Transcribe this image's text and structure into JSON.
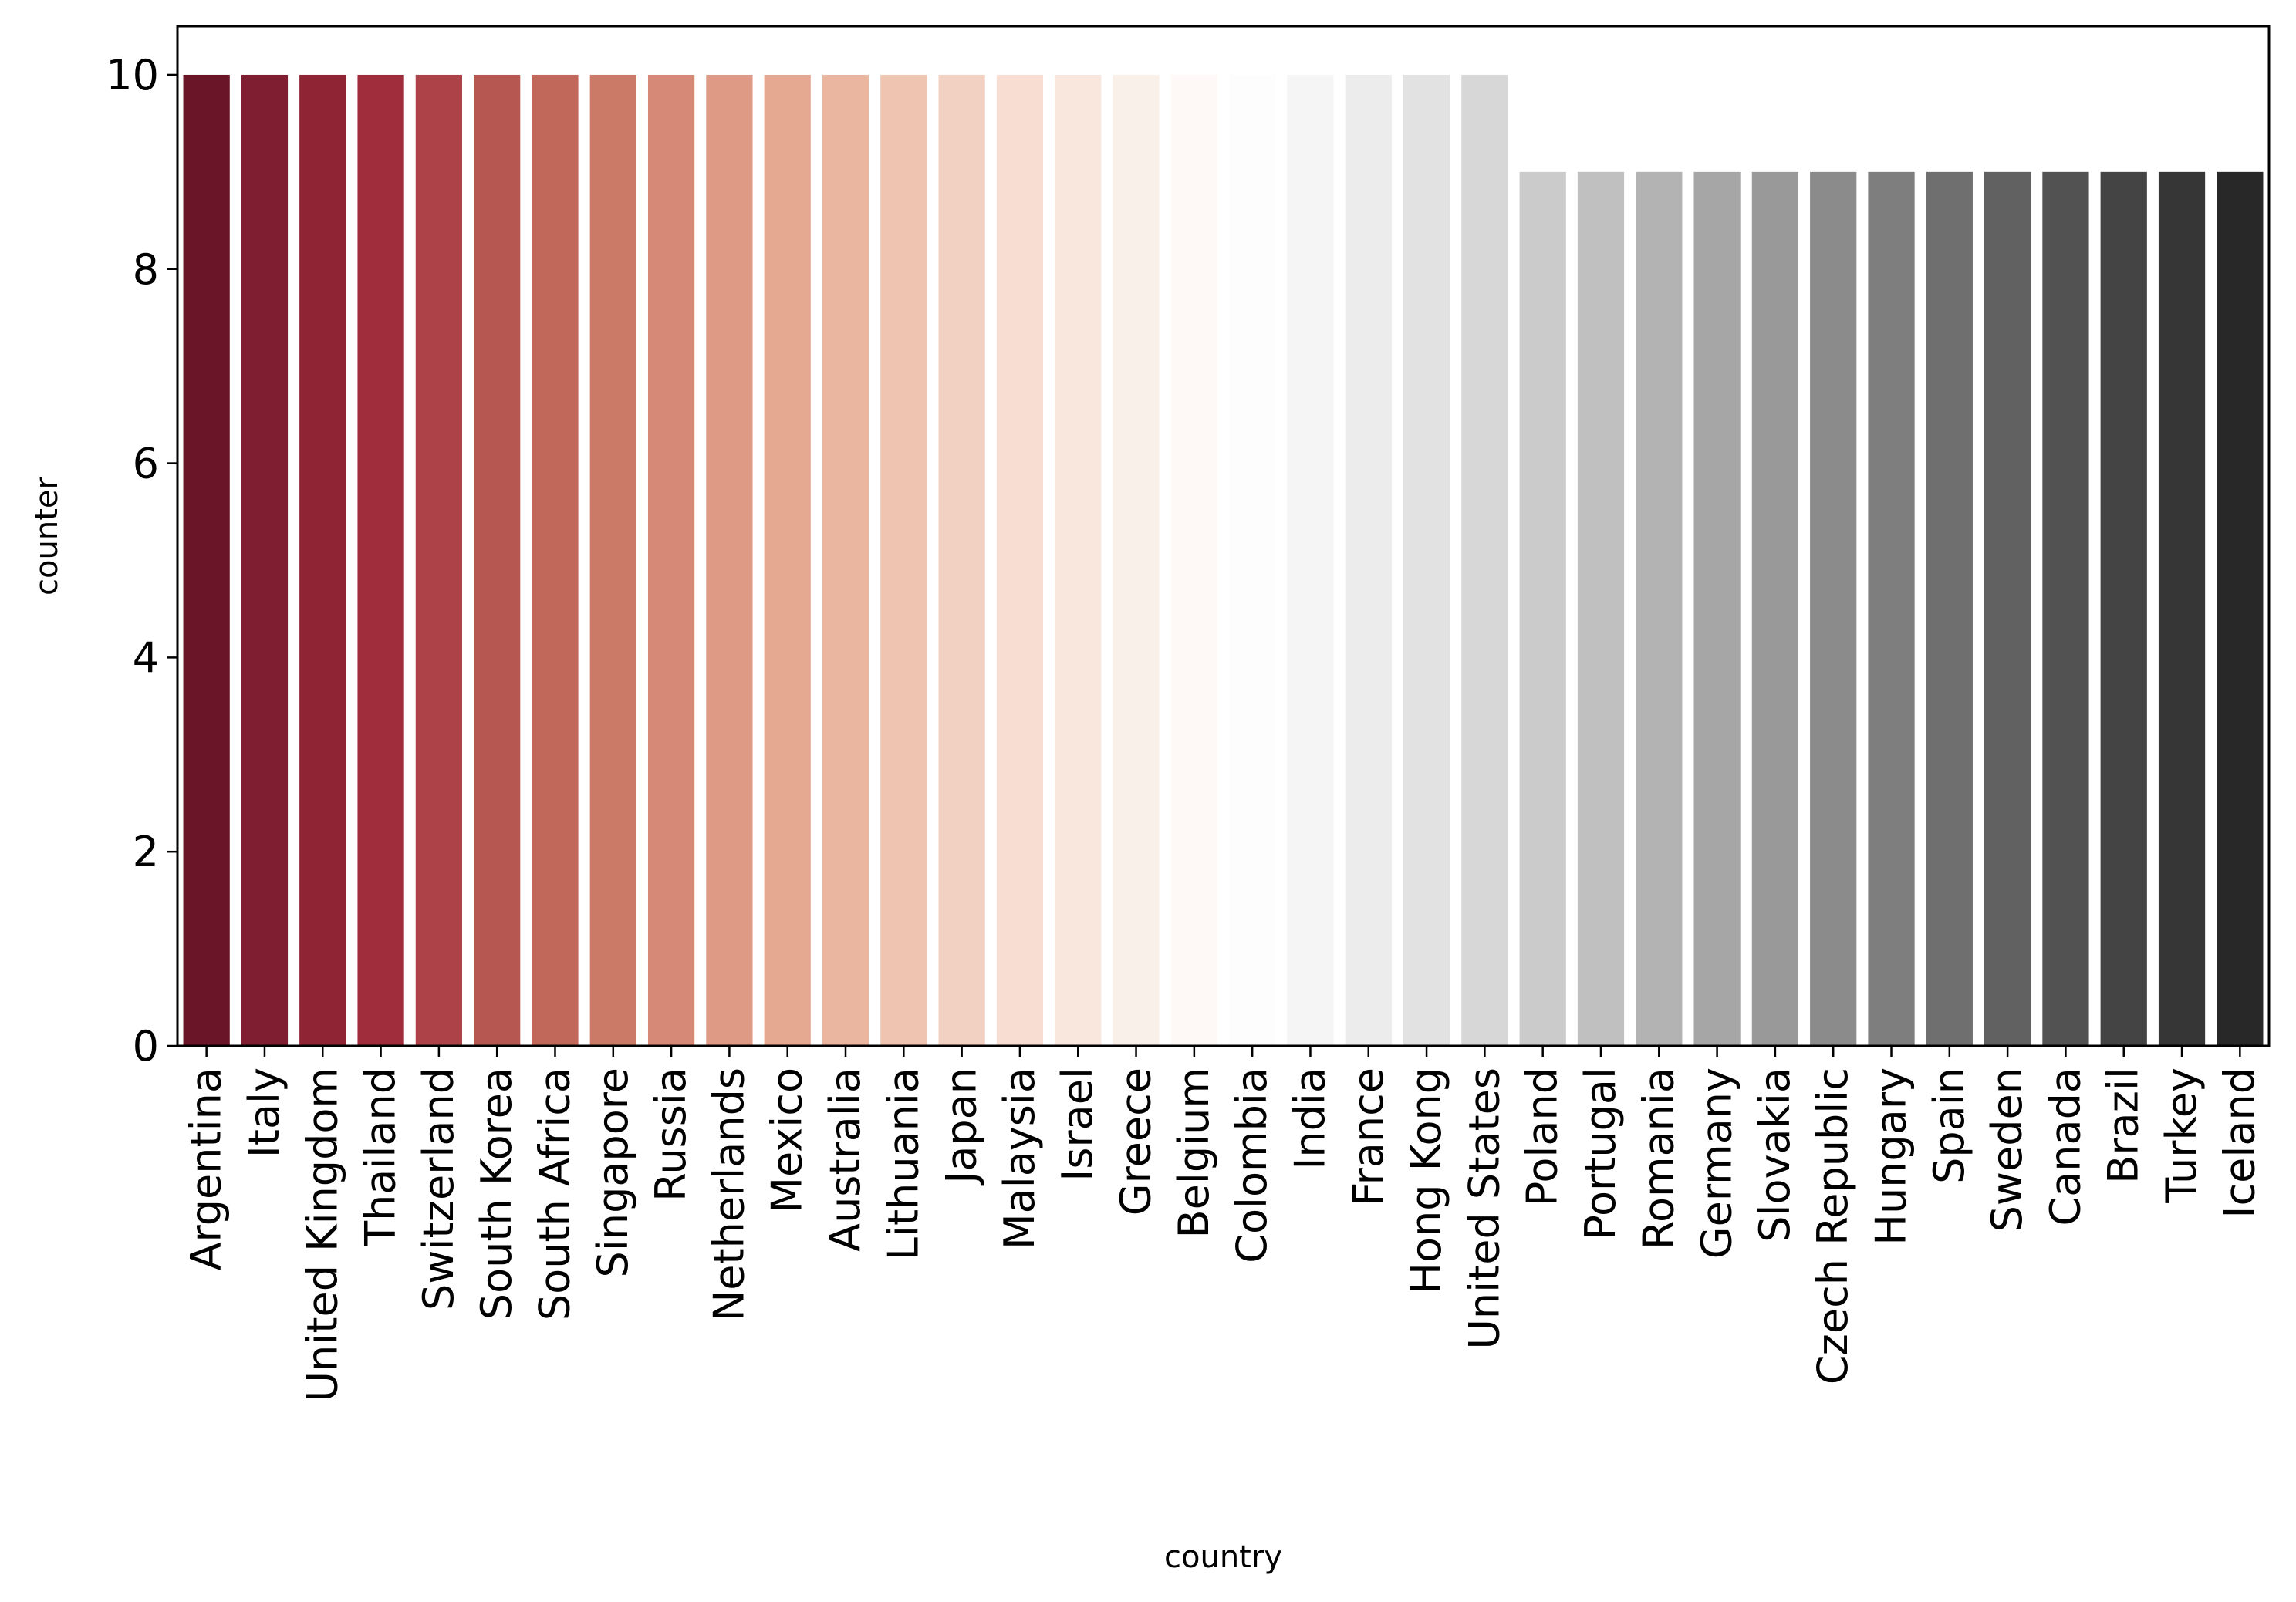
{
  "chart_data": {
    "type": "bar",
    "title": "",
    "xlabel": "country",
    "ylabel": "counter",
    "ylim": [
      0,
      10.5
    ],
    "yticks": [
      0,
      2,
      4,
      6,
      8,
      10
    ],
    "grid": false,
    "categories": [
      "Argentina",
      "Italy",
      "United Kingdom",
      "Thailand",
      "Switzerland",
      "South Korea",
      "South Africa",
      "Singapore",
      "Russia",
      "Netherlands",
      "Mexico",
      "Australia",
      "Lithuania",
      "Japan",
      "Malaysia",
      "Israel",
      "Greece",
      "Belgium",
      "Colombia",
      "India",
      "France",
      "Hong Kong",
      "United States",
      "Poland",
      "Portugal",
      "Romania",
      "Germany",
      "Slovakia",
      "Czech Republic",
      "Hungary",
      "Spain",
      "Sweden",
      "Canada",
      "Brazil",
      "Turkey",
      "Iceland"
    ],
    "values": [
      10,
      10,
      10,
      10,
      10,
      10,
      10,
      10,
      10,
      10,
      10,
      10,
      10,
      10,
      10,
      10,
      10,
      10,
      10,
      10,
      10,
      10,
      10,
      9,
      9,
      9,
      9,
      9,
      9,
      9,
      9,
      9,
      9,
      9,
      9,
      9
    ],
    "colors": [
      "#6b1528",
      "#7f1d31",
      "#8f2435",
      "#a02d3c",
      "#ad4348",
      "#b75752",
      "#c2685b",
      "#cc7a68",
      "#d68976",
      "#de9a84",
      "#e5a891",
      "#ebb69f",
      "#efc4b0",
      "#f3d1c2",
      "#f7ddd2",
      "#f9e6dd",
      "#faf0ea",
      "#fef9f6",
      "#fdfdfd",
      "#f5f5f5",
      "#ececec",
      "#e2e2e2",
      "#d7d7d7",
      "#cbcbcb",
      "#c0c0c0",
      "#b3b3b3",
      "#a6a6a6",
      "#999999",
      "#8b8b8b",
      "#7e7e7e",
      "#6f6f6f",
      "#616161",
      "#525252",
      "#444444",
      "#363636",
      "#282828"
    ]
  }
}
